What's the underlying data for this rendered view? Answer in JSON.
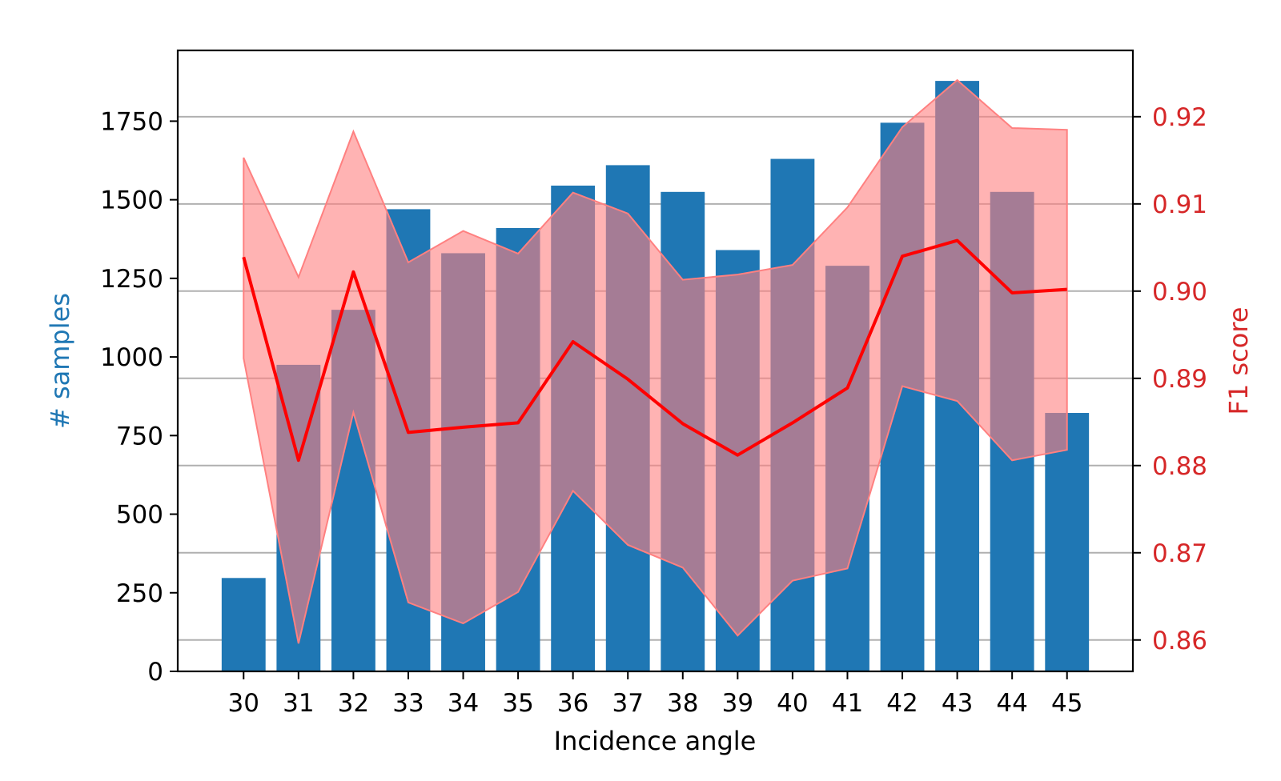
{
  "chart_data": {
    "type": "bar+line",
    "x": [
      30,
      31,
      32,
      33,
      34,
      35,
      36,
      37,
      38,
      39,
      40,
      41,
      42,
      43,
      44,
      45
    ],
    "xlabel": "Incidence angle",
    "xtick_labels": [
      "30",
      "31",
      "32",
      "33",
      "34",
      "35",
      "36",
      "37",
      "38",
      "39",
      "40",
      "41",
      "42",
      "43",
      "44",
      "45"
    ],
    "bars": {
      "axis": "left",
      "color": "#1f77b4",
      "values": [
        297,
        975,
        1150,
        1470,
        1330,
        1410,
        1545,
        1610,
        1525,
        1340,
        1630,
        1290,
        1745,
        1878,
        1525,
        822
      ]
    },
    "left_axis": {
      "label": "# samples",
      "label_color": "#1f77b4",
      "ylim": [
        0,
        1975
      ],
      "ticks": [
        0,
        250,
        500,
        750,
        1000,
        1250,
        1500,
        1750
      ],
      "tick_labels": [
        "0",
        "250",
        "500",
        "750",
        "1000",
        "1250",
        "1500",
        "1750"
      ]
    },
    "line": {
      "axis": "right",
      "color": "#ff0000",
      "values": [
        0.9039,
        0.8806,
        0.9022,
        0.8838,
        0.8844,
        0.8849,
        0.8942,
        0.8899,
        0.8848,
        0.8812,
        0.8849,
        0.8889,
        0.904,
        0.9058,
        0.8998,
        0.9002
      ],
      "band_upper": [
        0.9153,
        0.9016,
        0.9183,
        0.9033,
        0.9069,
        0.9043,
        0.9113,
        0.9089,
        0.9013,
        0.9019,
        0.903,
        0.9096,
        0.9188,
        0.9242,
        0.9187,
        0.9185
      ],
      "band_lower": [
        0.8923,
        0.8596,
        0.8861,
        0.8643,
        0.8619,
        0.8655,
        0.8771,
        0.8709,
        0.8683,
        0.8605,
        0.8668,
        0.8682,
        0.8891,
        0.8874,
        0.8806,
        0.8818
      ],
      "band_color": "#ff8080"
    },
    "right_axis": {
      "label": "F1 score",
      "label_color": "#d62728",
      "ylim": [
        0.8564,
        0.9276
      ],
      "ticks": [
        0.86,
        0.87,
        0.88,
        0.89,
        0.9,
        0.91,
        0.92
      ],
      "tick_labels": [
        "0.86",
        "0.87",
        "0.88",
        "0.89",
        "0.90",
        "0.91",
        "0.92"
      ]
    },
    "grid": "right-axis horizontal"
  }
}
